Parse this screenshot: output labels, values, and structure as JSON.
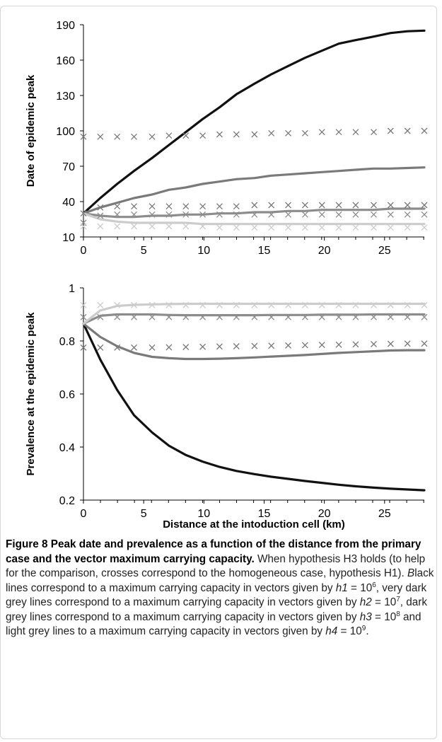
{
  "chart_data": [
    {
      "type": "line",
      "ylabel": "Date of epidemic peak",
      "xlabel": "",
      "xlim": [
        0,
        28.3
      ],
      "ylim": [
        10,
        190
      ],
      "yticks": [
        10,
        40,
        70,
        100,
        130,
        160,
        190
      ],
      "xticks": [
        0,
        5,
        10,
        15,
        20,
        25
      ],
      "x": [
        0,
        1.4,
        2.8,
        4.2,
        5.7,
        7.1,
        8.5,
        9.9,
        11.3,
        12.7,
        14.2,
        15.6,
        17.0,
        18.4,
        19.8,
        21.2,
        22.6,
        24.1,
        25.5,
        26.9,
        28.3
      ],
      "series": [
        {
          "role": "H3 line",
          "color": "#111111",
          "style": "line",
          "values": [
            30,
            43,
            55,
            66,
            77,
            88,
            99,
            110,
            120,
            131,
            140,
            148,
            155,
            162,
            168,
            174,
            177,
            180,
            183,
            184.5,
            185
          ]
        },
        {
          "role": "H3 line",
          "color": "#7a7a7a",
          "style": "line",
          "values": [
            30,
            35,
            39,
            43,
            46,
            50,
            52,
            55,
            57,
            59,
            60,
            62,
            63,
            64,
            65,
            66,
            67,
            68,
            68,
            68.5,
            69
          ]
        },
        {
          "role": "H3 line",
          "color": "#8c8c8c",
          "style": "line",
          "values": [
            30,
            28,
            27,
            27,
            28,
            28,
            29,
            29,
            30,
            30,
            31,
            31,
            32,
            32,
            33,
            33,
            33,
            33,
            34,
            34,
            34
          ]
        },
        {
          "role": "H3 line",
          "color": "#cccccc",
          "style": "line",
          "values": [
            30,
            25,
            23,
            22,
            22,
            22,
            22,
            21,
            21,
            21,
            21,
            21,
            21,
            21,
            21,
            21,
            21,
            21,
            21,
            21,
            21
          ]
        },
        {
          "role": "H1 crosses",
          "color": "#7a7a7a",
          "style": "cross",
          "values": [
            95,
            95,
            95,
            95,
            95,
            96,
            96,
            96,
            97,
            97,
            97,
            98,
            98,
            98,
            99,
            99,
            99,
            99,
            100,
            100,
            100
          ]
        },
        {
          "role": "H1 crosses",
          "color": "#7a7a7a",
          "style": "cross",
          "values": [
            30,
            35,
            36,
            36,
            36,
            36,
            36,
            36,
            36,
            36,
            37,
            37,
            37,
            37,
            37,
            37,
            37,
            37,
            37,
            37,
            37
          ]
        },
        {
          "role": "H1 crosses",
          "color": "#8c8c8c",
          "style": "cross",
          "values": [
            22,
            28,
            29,
            29,
            29,
            29,
            29,
            29,
            29,
            29,
            29,
            29,
            29,
            29,
            29,
            29,
            29,
            29,
            29,
            29,
            29
          ]
        },
        {
          "role": "H1 crosses",
          "color": "#cccccc",
          "style": "cross",
          "values": [
            19,
            19,
            19,
            19,
            19,
            19,
            19,
            19,
            18,
            18,
            18,
            18,
            18,
            18,
            18,
            18,
            18,
            18,
            18,
            18,
            18
          ]
        }
      ]
    },
    {
      "type": "line",
      "ylabel": "Prevalence at the epidemic peak",
      "xlabel": "Distance at the intoduction cell (km)",
      "xlim": [
        0,
        28.3
      ],
      "ylim": [
        0.2,
        1
      ],
      "yticks": [
        0.2,
        0.4,
        0.6,
        0.8,
        1
      ],
      "ytick_labels": [
        "0.2",
        "0.4",
        "0.6",
        "0.8",
        "1"
      ],
      "xticks": [
        0,
        5,
        10,
        15,
        20,
        25
      ],
      "x": [
        0,
        1.4,
        2.8,
        4.2,
        5.7,
        7.1,
        8.5,
        9.9,
        11.3,
        12.7,
        14.2,
        15.6,
        17.0,
        18.4,
        19.8,
        21.2,
        22.6,
        24.1,
        25.5,
        26.9,
        28.3
      ],
      "series": [
        {
          "role": "H3 line",
          "color": "#111111",
          "style": "line",
          "values": [
            0.865,
            0.73,
            0.615,
            0.52,
            0.455,
            0.405,
            0.37,
            0.345,
            0.325,
            0.31,
            0.298,
            0.288,
            0.28,
            0.272,
            0.265,
            0.258,
            0.252,
            0.247,
            0.243,
            0.24,
            0.237
          ]
        },
        {
          "role": "H3 line",
          "color": "#7a7a7a",
          "style": "line",
          "values": [
            0.865,
            0.815,
            0.78,
            0.755,
            0.74,
            0.735,
            0.732,
            0.732,
            0.733,
            0.735,
            0.738,
            0.741,
            0.744,
            0.747,
            0.751,
            0.755,
            0.758,
            0.761,
            0.764,
            0.765,
            0.765
          ]
        },
        {
          "role": "H3 line",
          "color": "#8c8c8c",
          "style": "line",
          "values": [
            0.865,
            0.895,
            0.9,
            0.9,
            0.9,
            0.898,
            0.897,
            0.897,
            0.897,
            0.897,
            0.897,
            0.898,
            0.898,
            0.898,
            0.899,
            0.899,
            0.899,
            0.9,
            0.9,
            0.9,
            0.9
          ]
        },
        {
          "role": "H3 line",
          "color": "#cccccc",
          "style": "line",
          "values": [
            0.865,
            0.915,
            0.932,
            0.936,
            0.938,
            0.939,
            0.94,
            0.94,
            0.94,
            0.94,
            0.94,
            0.94,
            0.94,
            0.94,
            0.94,
            0.94,
            0.94,
            0.94,
            0.94,
            0.94,
            0.94
          ]
        },
        {
          "role": "H1 crosses",
          "color": "#7a7a7a",
          "style": "cross",
          "values": [
            0.775,
            0.775,
            0.775,
            0.775,
            0.775,
            0.776,
            0.777,
            0.778,
            0.779,
            0.78,
            0.781,
            0.782,
            0.783,
            0.784,
            0.785,
            0.786,
            0.787,
            0.788,
            0.789,
            0.79,
            0.79
          ]
        },
        {
          "role": "H1 crosses",
          "color": "#8c8c8c",
          "style": "cross",
          "values": [
            0.89,
            0.89,
            0.89,
            0.89,
            0.89,
            0.89,
            0.89,
            0.89,
            0.89,
            0.89,
            0.89,
            0.89,
            0.89,
            0.89,
            0.89,
            0.89,
            0.89,
            0.89,
            0.89,
            0.89,
            0.89
          ]
        },
        {
          "role": "H1 crosses",
          "color": "#cccccc",
          "style": "cross",
          "values": [
            0.935,
            0.935,
            0.935,
            0.935,
            0.935,
            0.935,
            0.935,
            0.935,
            0.935,
            0.935,
            0.935,
            0.935,
            0.935,
            0.935,
            0.935,
            0.935,
            0.935,
            0.935,
            0.935,
            0.935,
            0.935
          ]
        }
      ]
    }
  ],
  "caption": {
    "title": "Figure 8 Peak date and prevalence as a function of the distance from the primary case and the vector maximum carrying capacity.",
    "body_1": " When hypothesis H3 holds (to help for the comparison, crosses correspond to the homogeneous case, hypothesis H1). ",
    "body_2_lead": "B",
    "body_2": "lack lines correspond to a maximum carrying capacity in vectors given by ",
    "h1": "h1",
    "eq1": " = 10",
    "exp1": "6",
    "body_3": ", very dark grey lines correspond to a maximum carrying capacity in vectors given by ",
    "h2": "h2",
    "eq2": " = 10",
    "exp2": "7",
    "body_4": ", dark grey lines correspond to a maximum carrying capacity in vectors given by ",
    "h3": "h3",
    "eq3": " = 10",
    "exp3": "8",
    "body_5": " and light grey lines to a maximum carrying capacity in vectors given by ",
    "h4": "h4",
    "eq4": " = 10",
    "exp4": "9",
    "body_6": "."
  }
}
